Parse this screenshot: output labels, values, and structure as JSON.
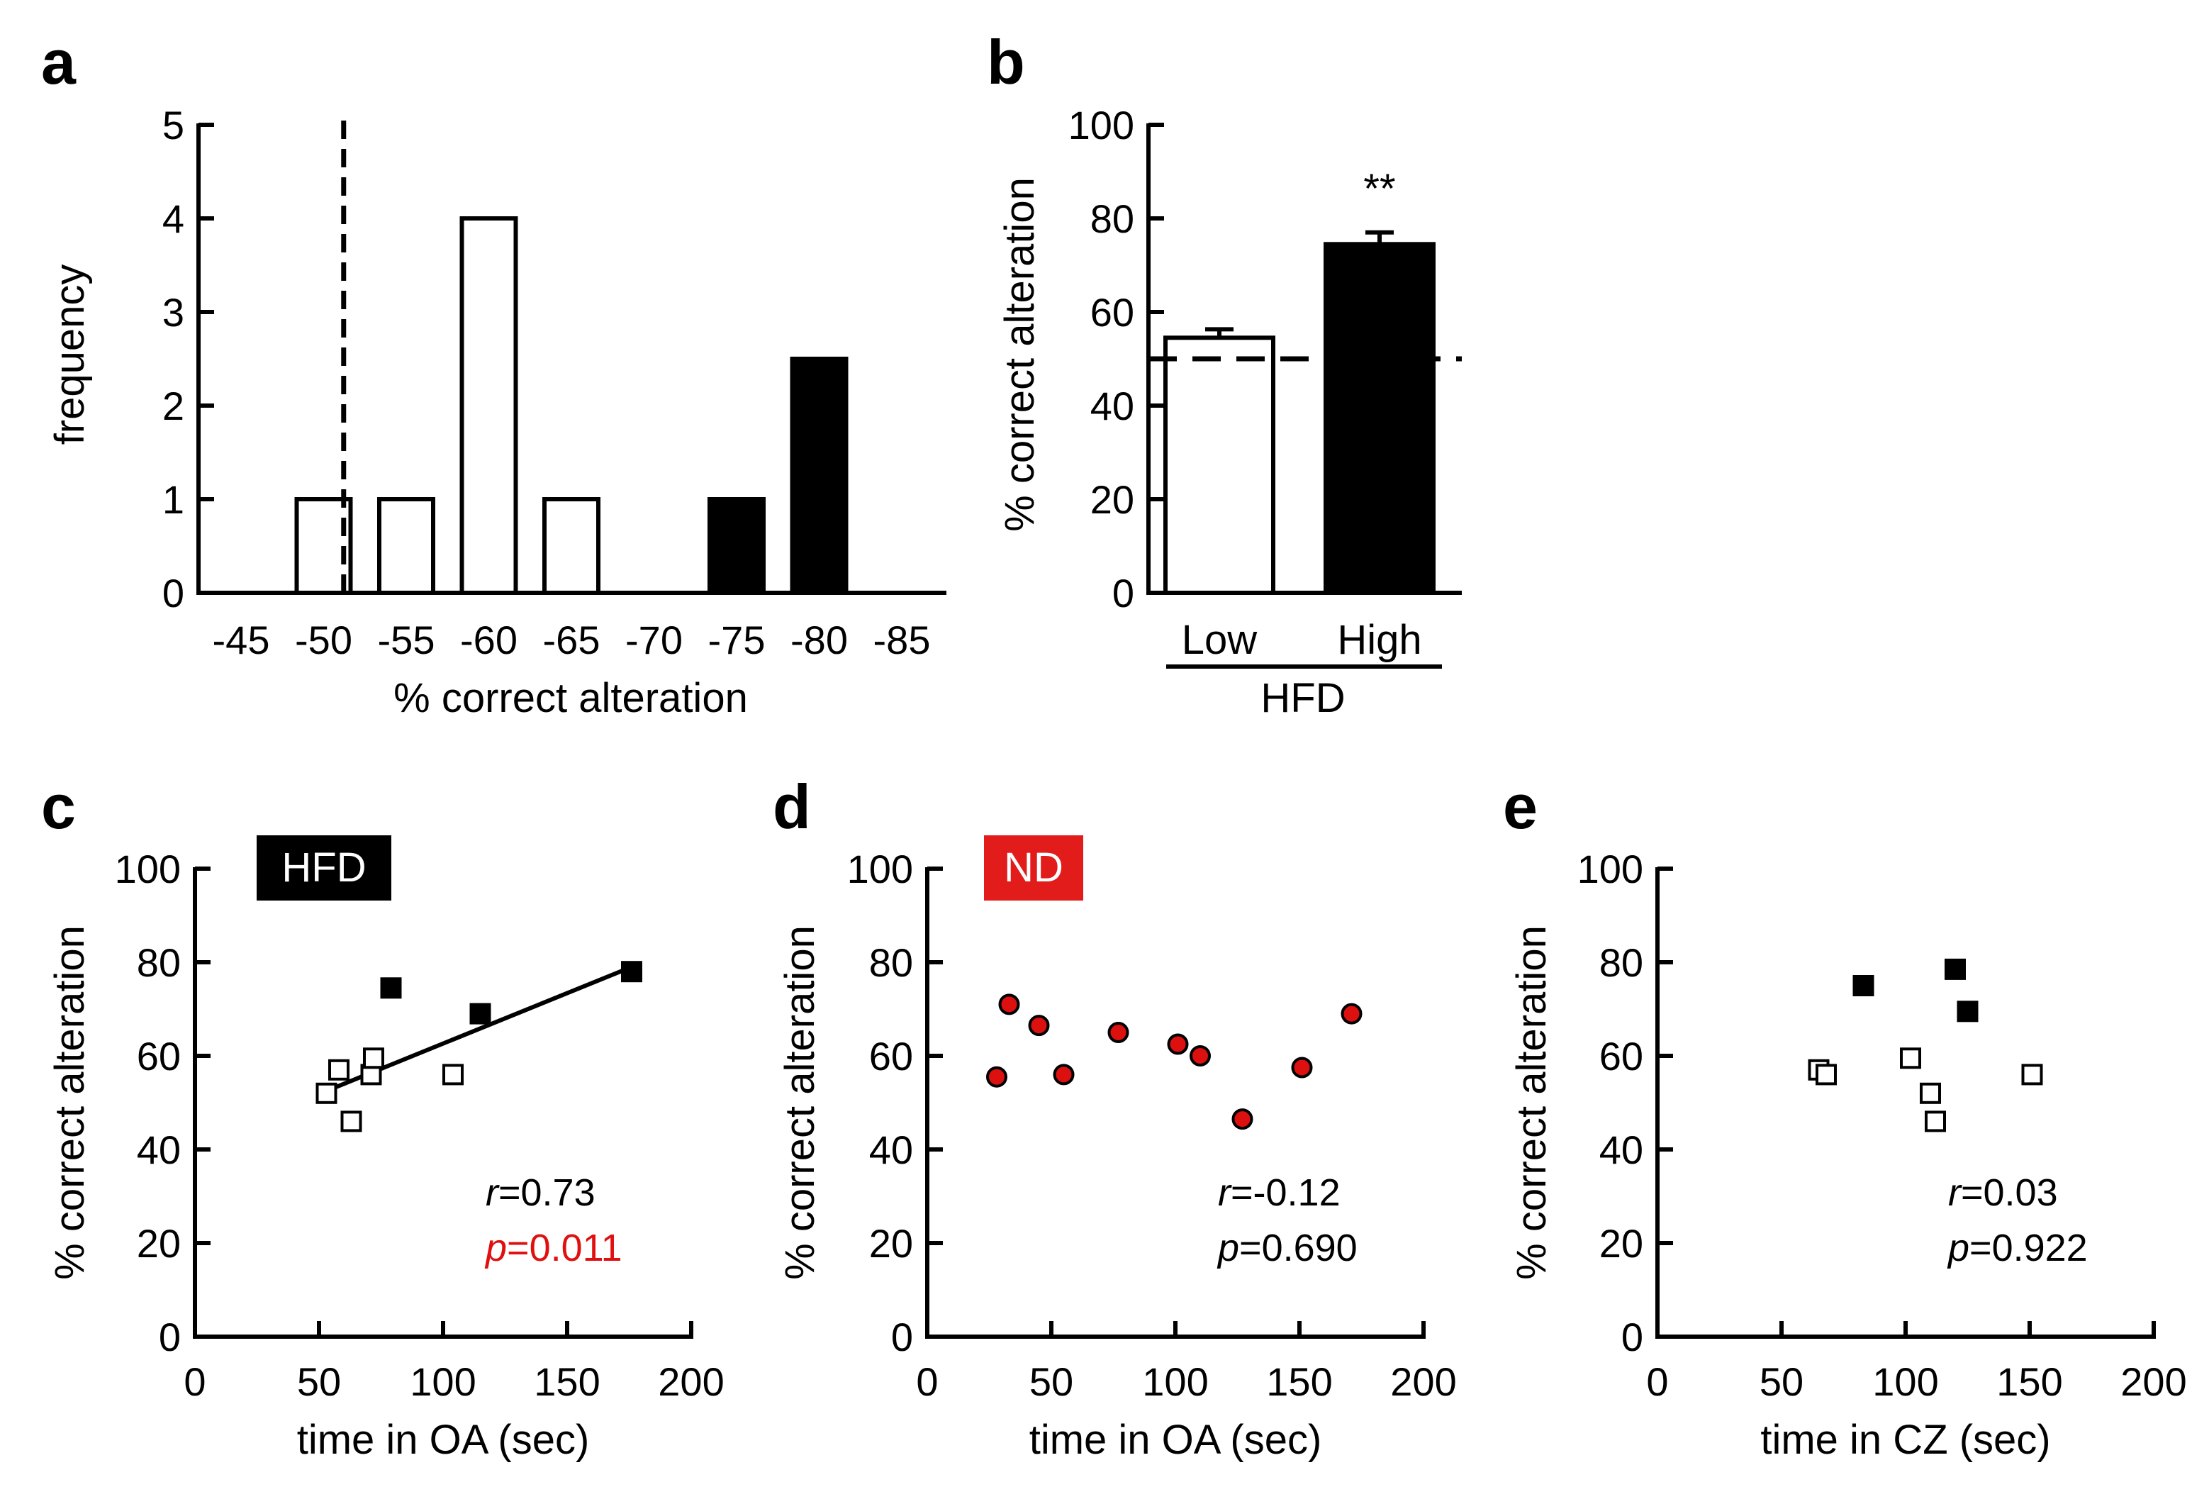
{
  "colors": {
    "open": "#ffffff",
    "filled": "#000000",
    "nd_points": "#dd1010",
    "hfd_badge_bg": "#000000",
    "hfd_badge_text": "#ffffff",
    "nd_badge_bg": "#e21b1b",
    "nd_badge_text": "#ffffff",
    "p_highlight": "#e01010"
  },
  "chart_data": [
    {
      "panel": "a",
      "type": "bar",
      "subtype": "histogram",
      "xlabel": "% correct alteration",
      "ylabel": "frequency",
      "ylim": [
        0,
        5
      ],
      "yticks": [
        "0",
        "1",
        "2",
        "3",
        "4",
        "5"
      ],
      "categories": [
        "-45",
        "-50",
        "-55",
        "-60",
        "-65",
        "-70",
        "-75",
        "-80",
        "-85"
      ],
      "series": [
        {
          "name": "Low",
          "fill": "open",
          "values": [
            0,
            1,
            1,
            4,
            1,
            0,
            0,
            0,
            0
          ]
        },
        {
          "name": "High",
          "fill": "filled",
          "values": [
            0,
            0,
            0,
            0,
            0,
            0,
            1,
            2.5,
            0
          ]
        }
      ],
      "reference_line": {
        "style": "dashed",
        "at_category_position": 1.5
      }
    },
    {
      "panel": "b",
      "type": "bar",
      "ylabel": "% correct alteration",
      "ylim": [
        0,
        100
      ],
      "yticks": [
        "0",
        "20",
        "40",
        "60",
        "80",
        "100"
      ],
      "categories": [
        "Low",
        "High"
      ],
      "group_label": "HFD",
      "values": [
        54.5,
        74.5
      ],
      "errors": [
        1.8,
        2.5
      ],
      "fills": [
        "open",
        "filled"
      ],
      "significance": [
        "",
        "**"
      ],
      "reference_line": {
        "style": "dashed",
        "y": 50
      }
    },
    {
      "panel": "c",
      "type": "scatter",
      "badge": "HFD",
      "xlabel": "time in OA (sec)",
      "ylabel": "% correct alteration",
      "xlim": [
        0,
        200
      ],
      "ylim": [
        0,
        100
      ],
      "xticks": [
        "0",
        "50",
        "100",
        "150",
        "200"
      ],
      "yticks": [
        "0",
        "20",
        "40",
        "60",
        "80",
        "100"
      ],
      "series": [
        {
          "name": "Low",
          "marker": "open-square",
          "x": [
            53,
            58,
            63,
            71,
            72,
            104
          ],
          "y": [
            52,
            57,
            46,
            56,
            59.5,
            56
          ]
        },
        {
          "name": "High",
          "marker": "filled-square",
          "x": [
            79,
            115,
            176
          ],
          "y": [
            74.5,
            69,
            78
          ]
        }
      ],
      "fit_line": {
        "x": [
          53,
          176
        ],
        "y": [
          52.5,
          79
        ]
      },
      "stats": {
        "r_label": "r",
        "r_value": "=0.73",
        "p_label": "p",
        "p_value": "=0.011"
      }
    },
    {
      "panel": "d",
      "type": "scatter",
      "badge": "ND",
      "xlabel": "time in OA (sec)",
      "ylabel": "% correct alteration",
      "xlim": [
        0,
        200
      ],
      "ylim": [
        0,
        100
      ],
      "xticks": [
        "0",
        "50",
        "100",
        "150",
        "200"
      ],
      "yticks": [
        "0",
        "20",
        "40",
        "60",
        "80",
        "100"
      ],
      "series": [
        {
          "name": "ND",
          "marker": "circle",
          "x": [
            28,
            33,
            45,
            55,
            77,
            101,
            110,
            127,
            151,
            171
          ],
          "y": [
            55.5,
            71,
            66.5,
            56,
            65,
            62.5,
            60,
            46.5,
            57.5,
            69
          ]
        }
      ],
      "stats": {
        "r_label": "r",
        "r_value": "=-0.12",
        "p_label": "p",
        "p_value": "=0.690"
      }
    },
    {
      "panel": "e",
      "type": "scatter",
      "xlabel": "time in CZ (sec)",
      "ylabel": "% correct alteration",
      "xlim": [
        0,
        200
      ],
      "ylim": [
        0,
        100
      ],
      "xticks": [
        "0",
        "50",
        "100",
        "150",
        "200"
      ],
      "yticks": [
        "0",
        "20",
        "40",
        "60",
        "80",
        "100"
      ],
      "series": [
        {
          "name": "Low",
          "marker": "open-square",
          "x": [
            65,
            68,
            102,
            110,
            112,
            151
          ],
          "y": [
            57,
            56,
            59.5,
            52,
            46,
            56
          ]
        },
        {
          "name": "High",
          "marker": "filled-square",
          "x": [
            83,
            120,
            125
          ],
          "y": [
            75,
            78.5,
            69.5
          ]
        }
      ],
      "stats": {
        "r_label": "r",
        "r_value": "=0.03",
        "p_label": "p",
        "p_value": "=0.922"
      }
    }
  ]
}
